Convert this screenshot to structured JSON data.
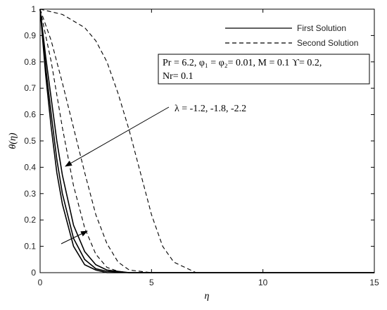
{
  "chart_data": {
    "type": "line",
    "xlabel": "η",
    "ylabel": "θ(η)",
    "xlim": [
      0,
      15
    ],
    "ylim": [
      0,
      1
    ],
    "xticks": [
      0,
      5,
      10,
      15
    ],
    "yticks": [
      0,
      0.1,
      0.2,
      0.3,
      0.4,
      0.5,
      0.6,
      0.7,
      0.8,
      0.9,
      1
    ],
    "legend": [
      {
        "name": "First Solution",
        "dash": "solid"
      },
      {
        "name": "Second Solution",
        "dash": "dashed"
      }
    ],
    "legend_position": "upper right",
    "annotations": [
      "Pr = 6.2, φ₁ = φ₂= 0.01, M = 0.1 ϒ= 0.2,",
      "Nr= 0.1",
      "λ = -1.2, -1.8, -2.2"
    ],
    "series": [
      {
        "dash": "solid",
        "color": "#000000",
        "x": [
          0,
          0.25,
          0.5,
          0.75,
          1,
          1.5,
          2,
          2.5,
          3,
          4,
          15
        ],
        "values": [
          1,
          0.75,
          0.55,
          0.38,
          0.26,
          0.1,
          0.03,
          0.01,
          0,
          0,
          0
        ]
      },
      {
        "dash": "solid",
        "color": "#000000",
        "x": [
          0,
          0.25,
          0.5,
          0.75,
          1,
          1.5,
          2,
          2.5,
          3,
          4,
          15
        ],
        "values": [
          1,
          0.78,
          0.6,
          0.43,
          0.3,
          0.13,
          0.05,
          0.015,
          0.005,
          0,
          0
        ]
      },
      {
        "dash": "solid",
        "color": "#000000",
        "x": [
          0,
          0.25,
          0.5,
          0.75,
          1,
          1.5,
          2,
          2.5,
          3,
          4,
          15
        ],
        "values": [
          1,
          0.82,
          0.66,
          0.5,
          0.37,
          0.18,
          0.08,
          0.03,
          0.01,
          0,
          0
        ]
      },
      {
        "dash": "dashed",
        "color": "#000000",
        "x": [
          0,
          0.5,
          1,
          1.5,
          2,
          2.5,
          3,
          3.5,
          4,
          15
        ],
        "values": [
          1,
          0.8,
          0.55,
          0.33,
          0.17,
          0.07,
          0.02,
          0.005,
          0,
          0
        ]
      },
      {
        "dash": "dashed",
        "color": "#000000",
        "x": [
          0,
          0.5,
          1,
          1.5,
          2,
          2.5,
          3,
          3.5,
          4,
          5,
          15
        ],
        "values": [
          1,
          0.88,
          0.72,
          0.55,
          0.38,
          0.22,
          0.11,
          0.04,
          0.01,
          0,
          0
        ]
      },
      {
        "dash": "dashed",
        "color": "#000000",
        "x": [
          0,
          1,
          2,
          2.5,
          3,
          3.5,
          4,
          4.5,
          5,
          5.5,
          6,
          7,
          15
        ],
        "values": [
          1,
          0.98,
          0.93,
          0.88,
          0.8,
          0.68,
          0.54,
          0.38,
          0.22,
          0.1,
          0.04,
          0,
          0
        ]
      }
    ]
  }
}
